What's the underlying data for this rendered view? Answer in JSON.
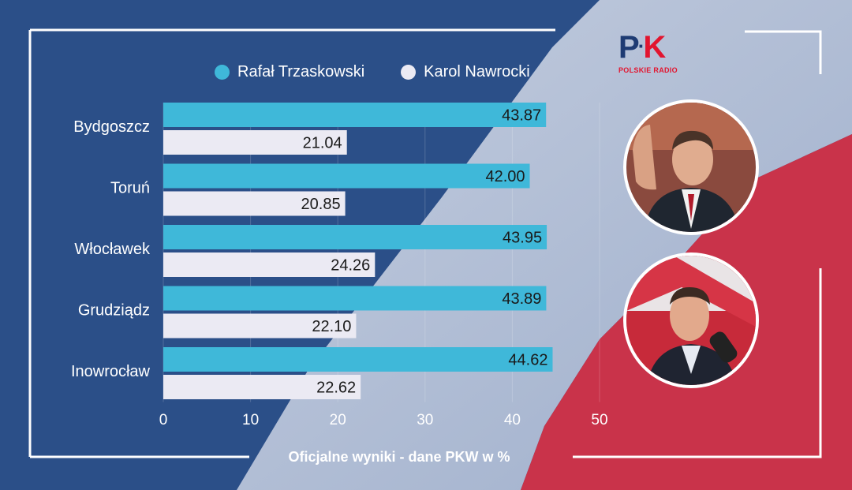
{
  "legend": [
    {
      "label": "Rafał Trzaskowski",
      "color": "#3fb8d9"
    },
    {
      "label": "Karol Nawrocki",
      "color": "#ebeaf3"
    }
  ],
  "footer": "Oficjalne wyniki - dane PKW w %",
  "logo": {
    "mark_p": "P",
    "mark_k": "K",
    "sub": "POLSKIE RADIO"
  },
  "colors": {
    "background": "#2a4f88",
    "flag_red": "#c9334a",
    "flag_white": "#dfe3ee"
  },
  "chart_data": {
    "type": "bar",
    "orientation": "horizontal",
    "categories": [
      "Bydgoszcz",
      "Toruń",
      "Włocławek",
      "Grudziądz",
      "Inowrocław"
    ],
    "series": [
      {
        "name": "Rafał Trzaskowski",
        "color": "#3fb8d9",
        "values": [
          43.87,
          42.0,
          43.95,
          43.89,
          44.62
        ],
        "labels": [
          "43.87",
          "42.00",
          "43.95",
          "43.89",
          "44.62"
        ]
      },
      {
        "name": "Karol Nawrocki",
        "color": "#ebeaf3",
        "values": [
          21.04,
          20.85,
          24.26,
          22.1,
          22.62
        ],
        "labels": [
          "21.04",
          "20.85",
          "24.26",
          "22.10",
          "22.62"
        ]
      }
    ],
    "xlim": [
      0,
      50
    ],
    "xticks": [
      "0",
      "10",
      "20",
      "30",
      "40",
      "50"
    ],
    "grid": true,
    "legend": "top"
  }
}
